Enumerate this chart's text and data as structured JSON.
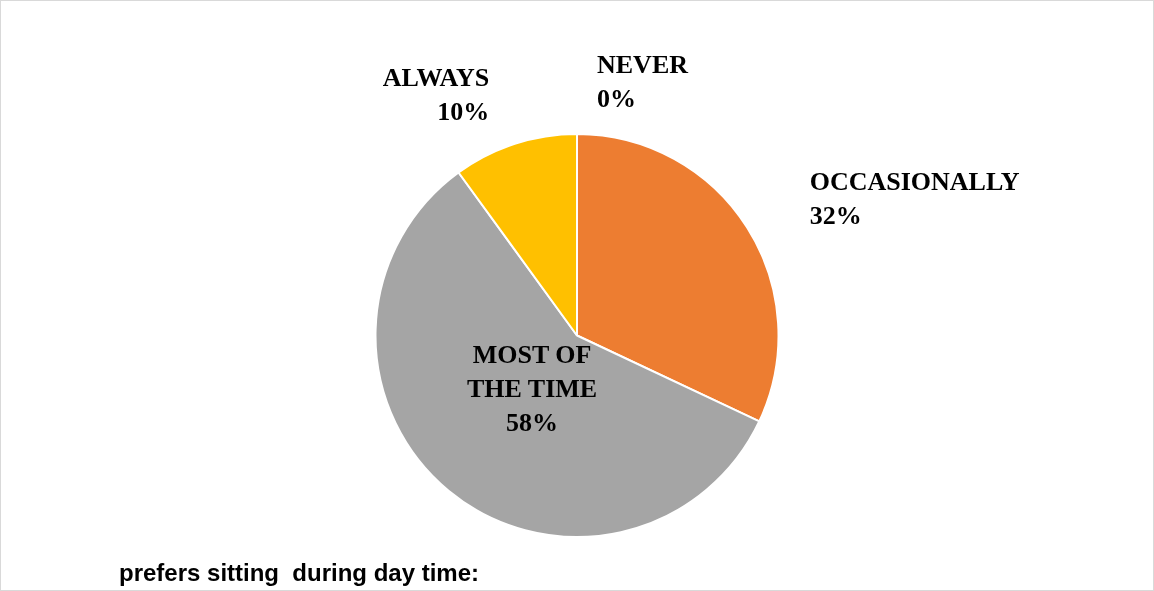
{
  "chart_data": {
    "type": "pie",
    "categories": [
      "NEVER",
      "OCCASIONALLY",
      "MOST OF THE TIME",
      "ALWAYS"
    ],
    "values": [
      0,
      32,
      58,
      10
    ],
    "colors": [
      "#4472c4",
      "#ed7d31",
      "#a5a5a5",
      "#ffc000"
    ],
    "value_labels": [
      "0%",
      "32%",
      "58%",
      "10%"
    ],
    "legend": false,
    "annotations": [
      "prefers sitting  during day time:"
    ]
  }
}
